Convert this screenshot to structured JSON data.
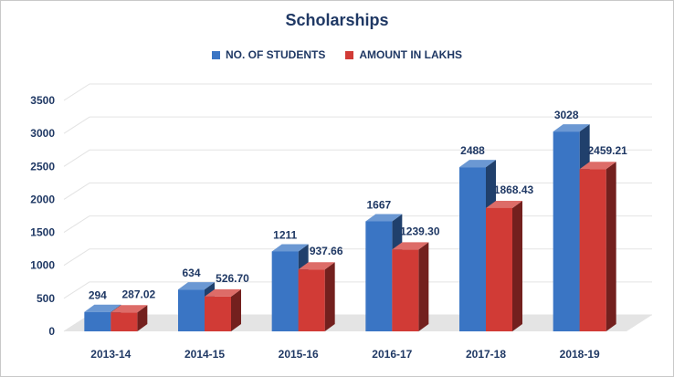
{
  "chart_data": {
    "type": "bar",
    "title": "Scholarships",
    "categories": [
      "2013-14",
      "2014-15",
      "2015-16",
      "2016-17",
      "2017-18",
      "2018-19"
    ],
    "series": [
      {
        "name": "NO. OF STUDENTS",
        "values": [
          294,
          634,
          1211,
          1667,
          2488,
          3028
        ],
        "labels": [
          "294",
          "634",
          "1211",
          "1667",
          "2488",
          "3028"
        ],
        "color": "#3a75c4"
      },
      {
        "name": "AMOUNT IN LAKHS",
        "values": [
          287.02,
          526.7,
          937.66,
          1239.3,
          1868.43,
          2459.21
        ],
        "labels": [
          "287.02",
          "526.70",
          "937.66",
          "1239.30",
          "1868.43",
          "2459.21"
        ],
        "color": "#d13b36"
      }
    ],
    "ylim": [
      0,
      3500
    ],
    "yticks": [
      0,
      500,
      1000,
      1500,
      2000,
      2500,
      3000,
      3500
    ],
    "grid": true,
    "legend_position": "top",
    "style": "3d-column"
  }
}
